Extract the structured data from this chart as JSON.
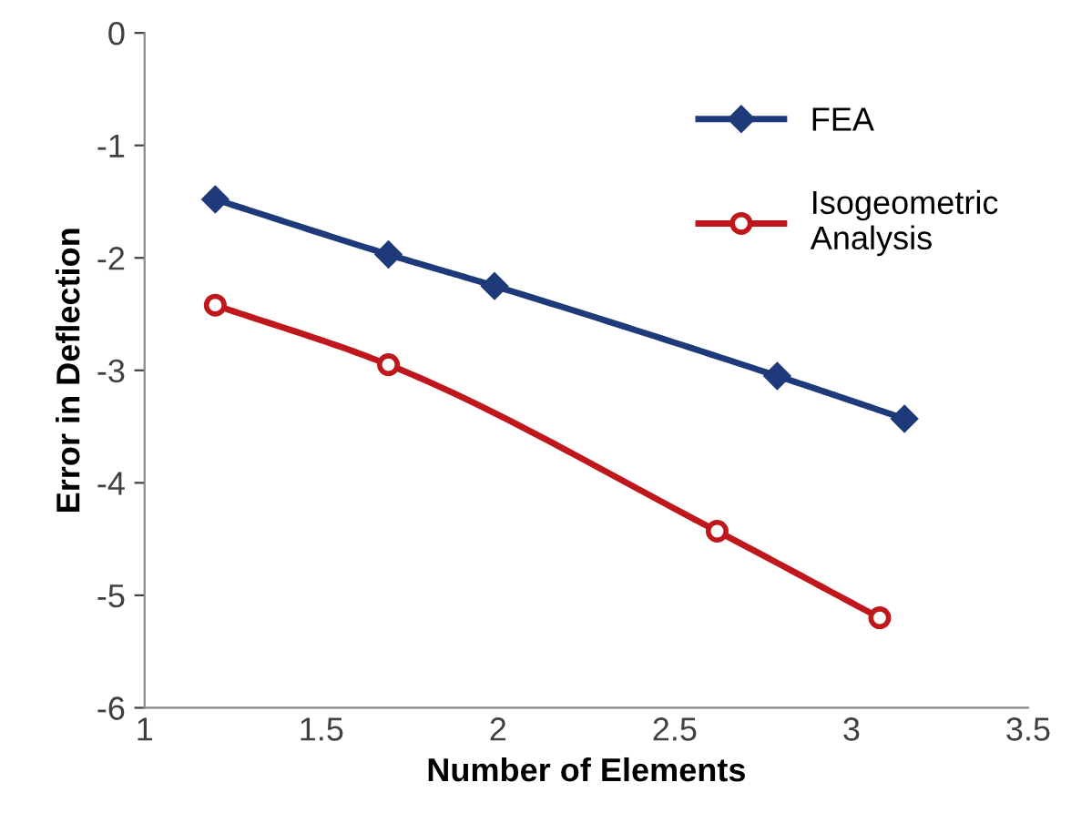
{
  "chart_data": {
    "type": "line",
    "xlabel": "Number of Elements",
    "ylabel": "Error in Deflection",
    "xlim": [
      1,
      3.5
    ],
    "xticks": [
      1,
      1.5,
      2,
      2.5,
      3,
      3.5
    ],
    "ylim": [
      -6,
      0
    ],
    "yticks": [
      {
        "value": -6,
        "label": "-6"
      },
      {
        "value": -5,
        "label": "-5"
      },
      {
        "value": -4,
        "label": "-4"
      },
      {
        "value": -3,
        "label": "-3"
      },
      {
        "value": -2,
        "label": "-2"
      },
      {
        "value": -1,
        "label": "-1"
      },
      0
    ],
    "grid": false,
    "legend": "right",
    "series": [
      {
        "name": "FEA",
        "color": "#1f3a7a",
        "marker": "diamond",
        "x": [
          1.2,
          1.69,
          1.99,
          2.79,
          3.15
        ],
        "values": [
          -1.48,
          -1.97,
          -2.25,
          -3.05,
          -3.43
        ]
      },
      {
        "name": "Isogeometric\nAnalysis",
        "color": "#c0171c",
        "marker": "circle",
        "x": [
          1.2,
          1.69,
          2.62,
          3.08
        ],
        "values": [
          -2.42,
          -2.95,
          -4.43,
          -5.2
        ]
      }
    ]
  }
}
